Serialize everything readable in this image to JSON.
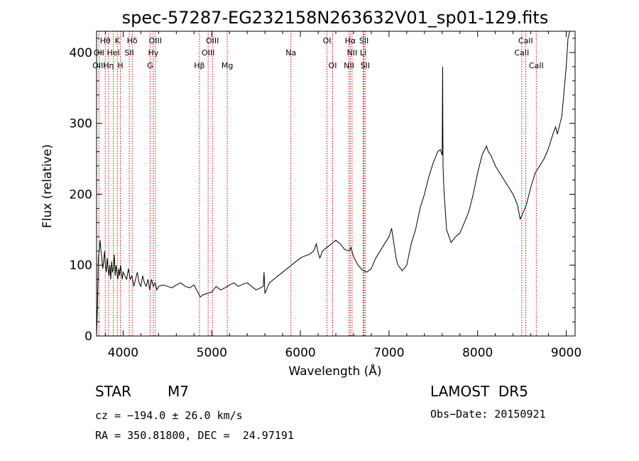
{
  "chart_data": {
    "type": "line",
    "title": "spec-57287-EG232158N263632V01_sp01-129.fits",
    "xlabel": "Wavelength (Å)",
    "ylabel": "Flux (relative)",
    "xlim": [
      3700,
      9100
    ],
    "ylim": [
      0,
      430
    ],
    "xticks": [
      4000,
      5000,
      6000,
      7000,
      8000,
      9000
    ],
    "yticks": [
      0,
      100,
      200,
      300,
      400
    ],
    "grid": false,
    "series": [
      {
        "x": [
          3700,
          3710,
          3720,
          3730,
          3740,
          3750,
          3760,
          3770,
          3780,
          3790,
          3800,
          3810,
          3820,
          3830,
          3840,
          3850,
          3860,
          3870,
          3880,
          3890,
          3900,
          3910,
          3920,
          3930,
          3940,
          3950,
          3960,
          3970,
          3980,
          3990,
          4000,
          4020,
          4040,
          4060,
          4080,
          4100,
          4120,
          4140,
          4160,
          4180,
          4200,
          4220,
          4240,
          4260,
          4280,
          4300,
          4320,
          4340,
          4360,
          4380,
          4400,
          4450,
          4500,
          4550,
          4600,
          4650,
          4700,
          4750,
          4800,
          4850,
          4870,
          4900,
          4950,
          5000,
          5050,
          5100,
          5150,
          5200,
          5250,
          5300,
          5350,
          5400,
          5450,
          5500,
          5550,
          5580,
          5590,
          5600,
          5650,
          5700,
          5750,
          5800,
          5850,
          5900,
          5950,
          6000,
          6050,
          6100,
          6150,
          6180,
          6200,
          6220,
          6250,
          6300,
          6350,
          6400,
          6450,
          6500,
          6550,
          6570,
          6600,
          6650,
          6700,
          6750,
          6800,
          6850,
          6900,
          6950,
          7000,
          7030,
          7050,
          7080,
          7100,
          7150,
          7200,
          7250,
          7300,
          7350,
          7400,
          7450,
          7500,
          7550,
          7580,
          7600,
          7605,
          7610,
          7620,
          7650,
          7700,
          7750,
          7800,
          7850,
          7900,
          7950,
          8000,
          8050,
          8100,
          8120,
          8150,
          8200,
          8250,
          8300,
          8350,
          8400,
          8450,
          8480,
          8500,
          8550,
          8600,
          8650,
          8700,
          8750,
          8800,
          8850,
          8880,
          8900,
          8950,
          9000,
          9020,
          9040
        ],
        "y": [
          0,
          40,
          110,
          120,
          135,
          120,
          110,
          95,
          105,
          120,
          100,
          90,
          110,
          95,
          85,
          100,
          80,
          105,
          90,
          95,
          115,
          85,
          100,
          90,
          80,
          95,
          85,
          100,
          90,
          80,
          90,
          85,
          80,
          95,
          80,
          85,
          70,
          80,
          90,
          75,
          70,
          85,
          75,
          70,
          80,
          65,
          80,
          70,
          75,
          65,
          70,
          72,
          70,
          68,
          72,
          75,
          70,
          68,
          72,
          60,
          55,
          58,
          60,
          62,
          70,
          65,
          68,
          72,
          75,
          70,
          73,
          75,
          70,
          65,
          68,
          70,
          90,
          60,
          75,
          80,
          85,
          90,
          95,
          100,
          105,
          110,
          113,
          115,
          120,
          130,
          118,
          110,
          120,
          125,
          130,
          135,
          130,
          122,
          120,
          125,
          112,
          100,
          93,
          90,
          95,
          110,
          120,
          130,
          140,
          152,
          135,
          110,
          100,
          92,
          100,
          130,
          150,
          180,
          200,
          225,
          245,
          260,
          263,
          255,
          380,
          240,
          205,
          150,
          132,
          140,
          145,
          160,
          175,
          200,
          230,
          255,
          268,
          260,
          255,
          240,
          230,
          220,
          210,
          200,
          185,
          165,
          170,
          185,
          210,
          230,
          240,
          250,
          265,
          285,
          295,
          285,
          310,
          380,
          420,
          430
        ]
      }
    ],
    "annotations": [
      {
        "label": "Hθ",
        "x": 3798,
        "row": 1
      },
      {
        "label": "K",
        "x": 3934,
        "row": 1
      },
      {
        "label": "Hδ",
        "x": 4102,
        "row": 1
      },
      {
        "label": "OIII",
        "x": 4363,
        "row": 1
      },
      {
        "label": "OIII",
        "x": 5007,
        "row": 1
      },
      {
        "label": "OI",
        "x": 6300,
        "row": 1
      },
      {
        "label": "Hα",
        "x": 6563,
        "row": 1
      },
      {
        "label": "SII",
        "x": 6717,
        "row": 1
      },
      {
        "label": "CaII",
        "x": 8542,
        "row": 1
      },
      {
        "label": "OII",
        "x": 3727,
        "row": 2
      },
      {
        "label": "HeI",
        "x": 3889,
        "row": 2
      },
      {
        "label": "SII",
        "x": 4069,
        "row": 2
      },
      {
        "label": "Hγ",
        "x": 4340,
        "row": 2
      },
      {
        "label": "OIII",
        "x": 4959,
        "row": 2
      },
      {
        "label": "Na",
        "x": 5893,
        "row": 2
      },
      {
        "label": "NII",
        "x": 6583,
        "row": 2
      },
      {
        "label": "Li",
        "x": 6708,
        "row": 2
      },
      {
        "label": "CaII",
        "x": 8498,
        "row": 2
      },
      {
        "label": "OIII",
        "x": 3727,
        "row": 3
      },
      {
        "label": "Hη",
        "x": 3835,
        "row": 3
      },
      {
        "label": "H",
        "x": 3969,
        "row": 3
      },
      {
        "label": "G",
        "x": 4304,
        "row": 3
      },
      {
        "label": "Hβ",
        "x": 4861,
        "row": 3
      },
      {
        "label": "Mg",
        "x": 5175,
        "row": 3
      },
      {
        "label": "OI",
        "x": 6364,
        "row": 3
      },
      {
        "label": "NII",
        "x": 6548,
        "row": 3
      },
      {
        "label": "SII",
        "x": 6731,
        "row": 3
      },
      {
        "label": "CaII",
        "x": 8662,
        "row": 3
      }
    ],
    "line_markers": [
      3727,
      3798,
      3835,
      3889,
      3934,
      3969,
      4069,
      4102,
      4304,
      4340,
      4363,
      4861,
      4959,
      5007,
      5175,
      5893,
      6300,
      6364,
      6548,
      6563,
      6583,
      6708,
      6717,
      6731,
      8498,
      8542,
      8662
    ],
    "marker_color": "#cc0000",
    "line_color": "#000000"
  },
  "info": {
    "class": "STAR",
    "subclass": "M7",
    "survey": "LAMOST  DR5",
    "cz": "cz = −194.0 ± 26.0 km/s",
    "obsdate": "Obs−Date: 20150921",
    "radec": "RA = 350.81800, DEC =  24.97191"
  }
}
